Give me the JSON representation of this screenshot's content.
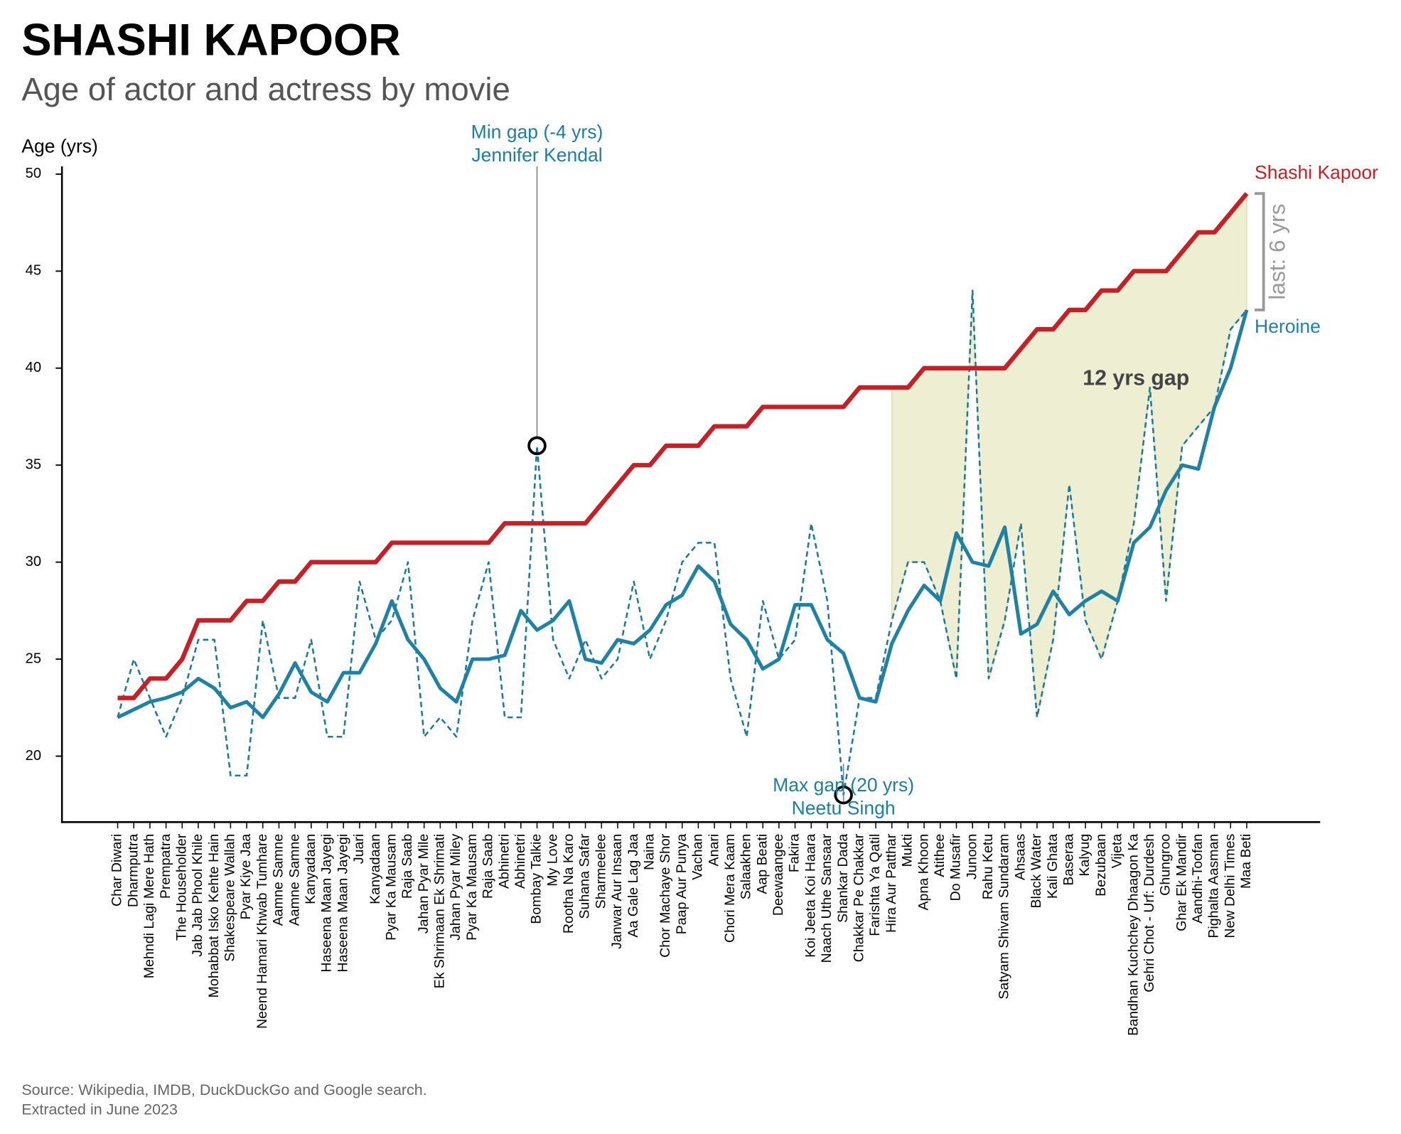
{
  "chart_data": {
    "type": "line",
    "title": "SHASHI KAPOOR",
    "subtitle": "Age of actor and actress by movie",
    "y_label": "Age (yrs)",
    "source": [
      "Source: Wikipedia, IMDB, DuckDuckGo and Google search.",
      "Extracted in June 2023"
    ],
    "categories": [
      "Char Diwari",
      "Dharmputra",
      "Mehndi Lagi Mere Hath",
      "Prempatra",
      "The Householder",
      "Jab Jab Phool Khile",
      "Mohabbat Isko Kehte Hain",
      "Shakespeare Wallah",
      "Pyar Kiye Jaa",
      "Neend Hamari Khwab Tumhare",
      "Aamne Samne",
      "Aamne Samne",
      "Kanyadaan",
      "Haseena Maan Jayegi",
      "Haseena Maan Jayegi",
      "Juari",
      "Kanyadaan",
      "Pyar Ka Mausam",
      "Raja Saab",
      "Jahan Pyar Mile",
      "Ek Shrimaan Ek Shrimati",
      "Jahan Pyar Miley",
      "Pyar Ka Mausam",
      "Raja Saab",
      "Abhinetri",
      "Abhinetri",
      "Bombay Talkie",
      "My Love",
      "Rootha Na Karo",
      "Suhana Safar",
      "Sharmeelee",
      "Janwar Aur Insaan",
      "Aa Gale Lag Jaa",
      "Naina",
      "Chor Machaye Shor",
      "Paap Aur Punya",
      "Vachan",
      "Anari",
      "Chori Mera Kaam",
      "Salaakhen",
      "Aap Beati",
      "Deewaangee",
      "Fakira",
      "Koi Jeeta Koi Haara",
      "Naach Uthe Sansaar",
      "Shankar Dada",
      "Chakkar Pe Chakkar",
      "Farishta Ya Qatil",
      "Hira Aur Patthar",
      "Mukti",
      "Apna Khoon",
      "Atithee",
      "Do Musafir",
      "Junoon",
      "Rahu Ketu",
      "Satyam Shivam Sundaram",
      "Ahsaas",
      "Black Water",
      "Kali Ghata",
      "Baseraa",
      "Kalyug",
      "Bezubaan",
      "Vijeta",
      "Bandhan Kuchchey Dhaagon Ka",
      "Gehri Chot - Urf: Durdesh",
      "Ghungroo",
      "Ghar Ek Mandir",
      "Aandhi-Toofan",
      "Pighalta Aasman",
      "New Delhi Times",
      "Maa Beti"
    ],
    "series": [
      {
        "name": "Shashi Kapoor",
        "color": "#c62026",
        "values": [
          23,
          23,
          24,
          24,
          25,
          27,
          27,
          27,
          28,
          28,
          29,
          29,
          30,
          30,
          30,
          30,
          30,
          31,
          31,
          31,
          31,
          31,
          31,
          31,
          32,
          32,
          32,
          32,
          32,
          32,
          33,
          34,
          35,
          35,
          36,
          36,
          36,
          37,
          37,
          37,
          38,
          38,
          38,
          38,
          38,
          38,
          39,
          39,
          39,
          39,
          40,
          40,
          40,
          40,
          40,
          40,
          41,
          42,
          42,
          43,
          43,
          44,
          44,
          45,
          45,
          45,
          46,
          47,
          47,
          48,
          49
        ]
      },
      {
        "color": "#1a7a99",
        "dashed": true,
        "values": [
          22,
          25,
          23,
          21,
          23,
          26,
          26,
          19,
          19,
          27,
          23,
          23,
          26,
          21,
          21,
          29,
          26,
          27,
          30,
          21,
          22,
          21,
          27,
          30,
          22,
          22,
          36,
          26,
          24,
          26,
          24,
          25,
          29,
          25,
          27,
          30,
          31,
          31,
          24,
          21,
          28,
          25,
          26,
          32,
          28,
          18,
          23,
          23,
          27,
          30,
          30,
          28,
          24,
          44,
          24,
          27,
          32,
          22,
          26,
          34,
          27,
          25,
          28,
          32,
          39,
          28,
          36,
          37,
          38,
          42,
          43
        ]
      },
      {
        "name": "Heroine",
        "color": "#1f82a5",
        "values": [
          22,
          22.4,
          22.8,
          23,
          23.3,
          24,
          23.5,
          22.5,
          22.8,
          22,
          23.2,
          24.8,
          23.3,
          22.8,
          24.3,
          24.3,
          25.8,
          28,
          26,
          25,
          23.5,
          22.8,
          25,
          25,
          25.2,
          27.5,
          26.5,
          27,
          28,
          25,
          24.8,
          26,
          25.8,
          26.5,
          27.8,
          28.3,
          29.8,
          29,
          26.8,
          26,
          24.5,
          25,
          27.8,
          27.8,
          26,
          25.3,
          23,
          22.8,
          25.8,
          27.5,
          28.8,
          28,
          31.5,
          30,
          29.8,
          31.8,
          26.3,
          26.8,
          28.5,
          27.3,
          28,
          28.5,
          28,
          31,
          31.8,
          33.7,
          35,
          34.8,
          38,
          40,
          43
        ]
      }
    ],
    "ylim": [
      16.6,
      50.4
    ],
    "yticks": [
      20,
      25,
      30,
      35,
      40,
      45,
      50
    ],
    "gap_label": "12 yrs gap",
    "last_gap_label": "last: 6 yrs",
    "min_gap_label": [
      "Min gap (-4 yrs)",
      "Jennifer Kendal"
    ],
    "max_gap_label": [
      "Max gap (20 yrs)",
      "Neetu Singh"
    ],
    "shade_color": "#eeeed3"
  }
}
